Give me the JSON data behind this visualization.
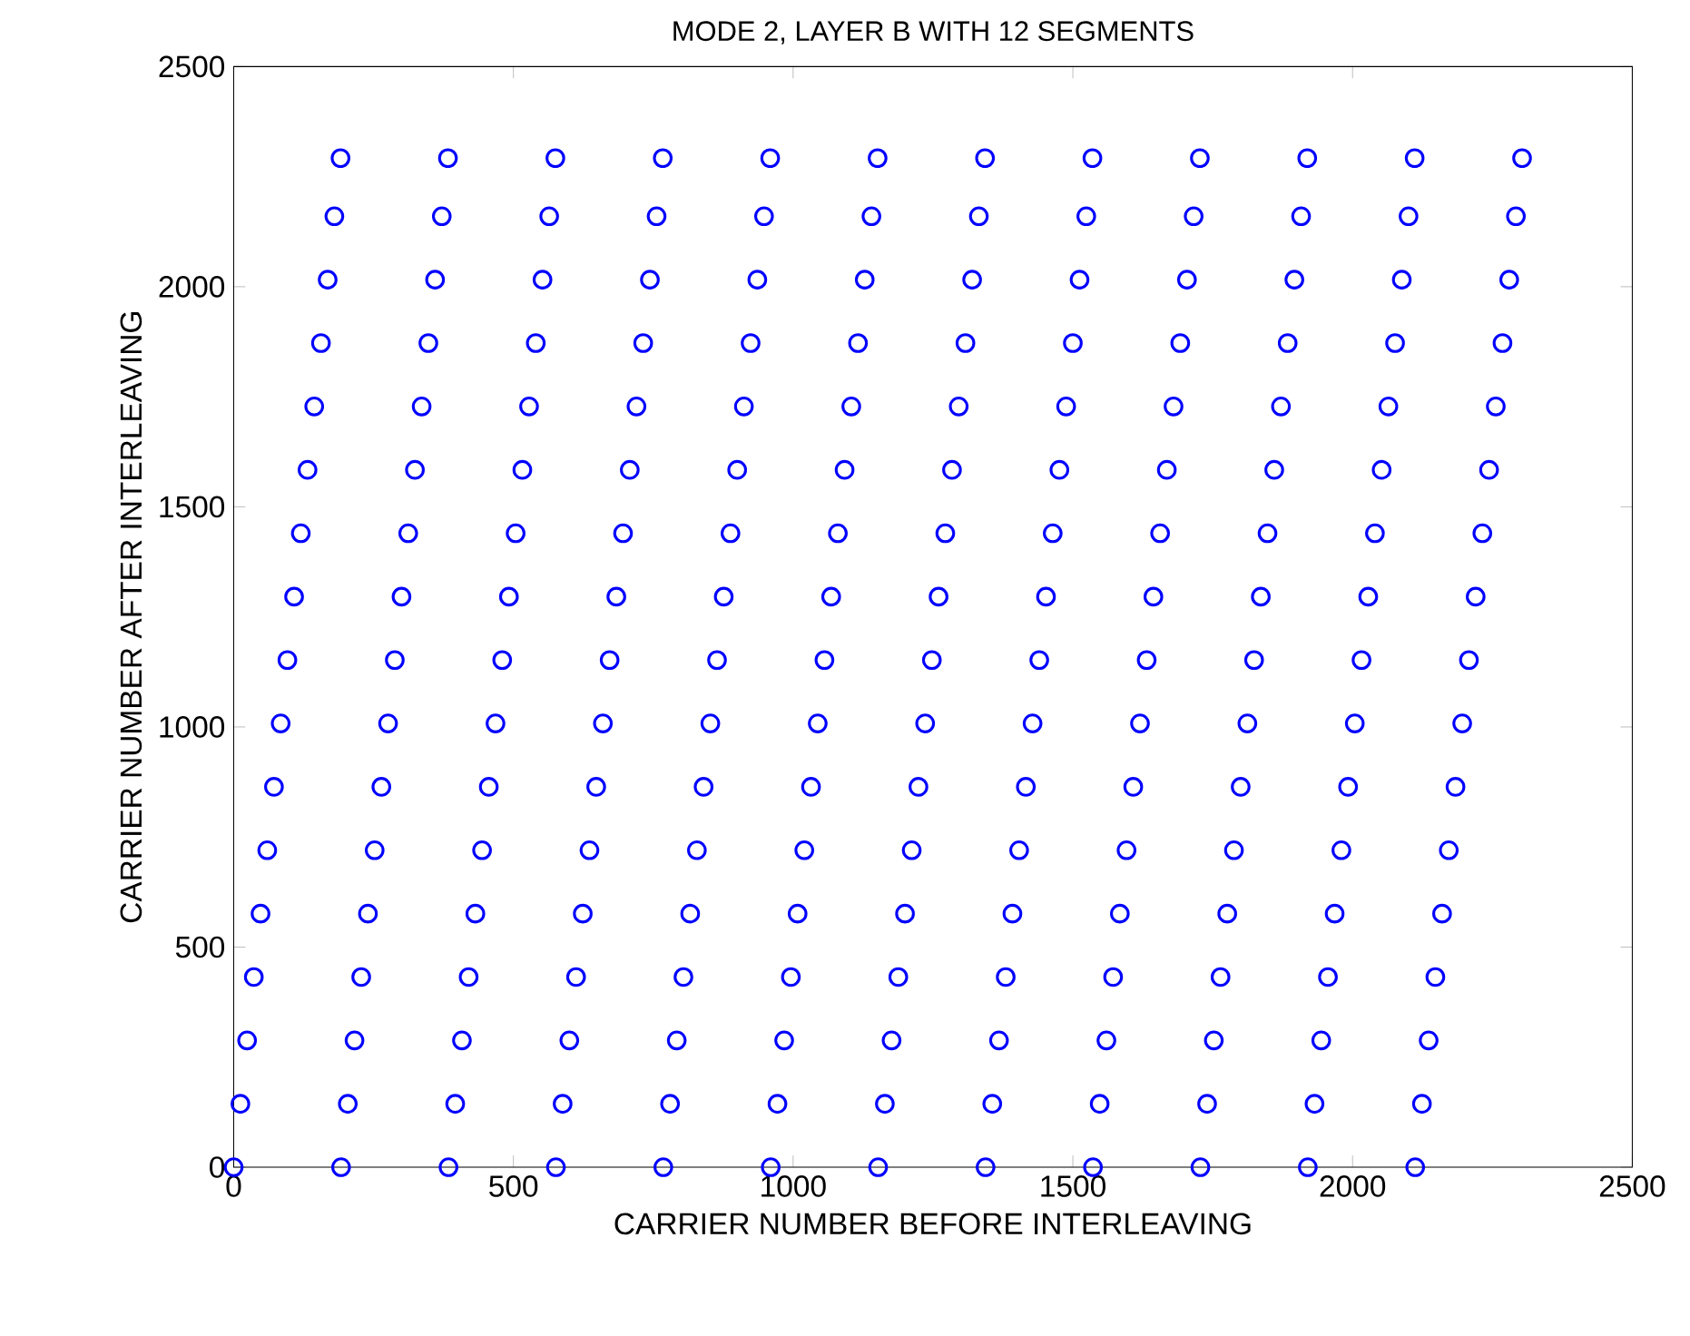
{
  "chart_data": {
    "type": "scatter",
    "title": "MODE 2, LAYER B WITH 12 SEGMENTS",
    "xlabel": "CARRIER NUMBER BEFORE INTERLEAVING",
    "ylabel": "CARRIER NUMBER AFTER INTERLEAVING",
    "xlim": [
      0,
      2500
    ],
    "ylim": [
      0,
      2500
    ],
    "xticks": [
      0,
      500,
      1000,
      1500,
      2000,
      2500
    ],
    "yticks": [
      0,
      500,
      1000,
      1500,
      2000,
      2500
    ],
    "marker": "circle",
    "series": [
      {
        "color": "#0000ff",
        "x": [
          0,
          12,
          24,
          36,
          48,
          60,
          72,
          84,
          96,
          108,
          120,
          132,
          144,
          156,
          168,
          180,
          191
        ],
        "values": [
          0,
          144,
          288,
          432,
          576,
          720,
          864,
          1008,
          1152,
          1296,
          1440,
          1584,
          1728,
          1872,
          2016,
          2160,
          2292
        ]
      },
      {
        "color": "#0000ff",
        "x": [
          192,
          204,
          216,
          228,
          240,
          252,
          264,
          276,
          288,
          300,
          312,
          324,
          336,
          348,
          360,
          372,
          383
        ],
        "values": [
          0,
          144,
          288,
          432,
          576,
          720,
          864,
          1008,
          1152,
          1296,
          1440,
          1584,
          1728,
          1872,
          2016,
          2160,
          2292
        ]
      },
      {
        "color": "#0000ff",
        "x": [
          384,
          396,
          408,
          420,
          432,
          444,
          456,
          468,
          480,
          492,
          504,
          516,
          528,
          540,
          552,
          564,
          575
        ],
        "values": [
          0,
          144,
          288,
          432,
          576,
          720,
          864,
          1008,
          1152,
          1296,
          1440,
          1584,
          1728,
          1872,
          2016,
          2160,
          2292
        ]
      },
      {
        "color": "#0000ff",
        "x": [
          576,
          588,
          600,
          612,
          624,
          636,
          648,
          660,
          672,
          684,
          696,
          708,
          720,
          732,
          744,
          756,
          767
        ],
        "values": [
          0,
          144,
          288,
          432,
          576,
          720,
          864,
          1008,
          1152,
          1296,
          1440,
          1584,
          1728,
          1872,
          2016,
          2160,
          2292
        ]
      },
      {
        "color": "#0000ff",
        "x": [
          768,
          780,
          792,
          804,
          816,
          828,
          840,
          852,
          864,
          876,
          888,
          900,
          912,
          924,
          936,
          948,
          959
        ],
        "values": [
          0,
          144,
          288,
          432,
          576,
          720,
          864,
          1008,
          1152,
          1296,
          1440,
          1584,
          1728,
          1872,
          2016,
          2160,
          2292
        ]
      },
      {
        "color": "#0000ff",
        "x": [
          960,
          972,
          984,
          996,
          1008,
          1020,
          1032,
          1044,
          1056,
          1068,
          1080,
          1092,
          1104,
          1116,
          1128,
          1140,
          1151
        ],
        "values": [
          0,
          144,
          288,
          432,
          576,
          720,
          864,
          1008,
          1152,
          1296,
          1440,
          1584,
          1728,
          1872,
          2016,
          2160,
          2292
        ]
      },
      {
        "color": "#0000ff",
        "x": [
          1152,
          1164,
          1176,
          1188,
          1200,
          1212,
          1224,
          1236,
          1248,
          1260,
          1272,
          1284,
          1296,
          1308,
          1320,
          1332,
          1343
        ],
        "values": [
          0,
          144,
          288,
          432,
          576,
          720,
          864,
          1008,
          1152,
          1296,
          1440,
          1584,
          1728,
          1872,
          2016,
          2160,
          2292
        ]
      },
      {
        "color": "#0000ff",
        "x": [
          1344,
          1356,
          1368,
          1380,
          1392,
          1404,
          1416,
          1428,
          1440,
          1452,
          1464,
          1476,
          1488,
          1500,
          1512,
          1524,
          1535
        ],
        "values": [
          0,
          144,
          288,
          432,
          576,
          720,
          864,
          1008,
          1152,
          1296,
          1440,
          1584,
          1728,
          1872,
          2016,
          2160,
          2292
        ]
      },
      {
        "color": "#0000ff",
        "x": [
          1536,
          1548,
          1560,
          1572,
          1584,
          1596,
          1608,
          1620,
          1632,
          1644,
          1656,
          1668,
          1680,
          1692,
          1704,
          1716,
          1727
        ],
        "values": [
          0,
          144,
          288,
          432,
          576,
          720,
          864,
          1008,
          1152,
          1296,
          1440,
          1584,
          1728,
          1872,
          2016,
          2160,
          2292
        ]
      },
      {
        "color": "#0000ff",
        "x": [
          1728,
          1740,
          1752,
          1764,
          1776,
          1788,
          1800,
          1812,
          1824,
          1836,
          1848,
          1860,
          1872,
          1884,
          1896,
          1908,
          1919
        ],
        "values": [
          0,
          144,
          288,
          432,
          576,
          720,
          864,
          1008,
          1152,
          1296,
          1440,
          1584,
          1728,
          1872,
          2016,
          2160,
          2292
        ]
      },
      {
        "color": "#0000ff",
        "x": [
          1920,
          1932,
          1944,
          1956,
          1968,
          1980,
          1992,
          2004,
          2016,
          2028,
          2040,
          2052,
          2064,
          2076,
          2088,
          2100,
          2111
        ],
        "values": [
          0,
          144,
          288,
          432,
          576,
          720,
          864,
          1008,
          1152,
          1296,
          1440,
          1584,
          1728,
          1872,
          2016,
          2160,
          2292
        ]
      },
      {
        "color": "#0000ff",
        "x": [
          2112,
          2124,
          2136,
          2148,
          2160,
          2172,
          2184,
          2196,
          2208,
          2220,
          2232,
          2244,
          2256,
          2268,
          2280,
          2292,
          2303
        ],
        "values": [
          0,
          144,
          288,
          432,
          576,
          720,
          864,
          1008,
          1152,
          1296,
          1440,
          1584,
          1728,
          1872,
          2016,
          2160,
          2292
        ]
      }
    ]
  }
}
